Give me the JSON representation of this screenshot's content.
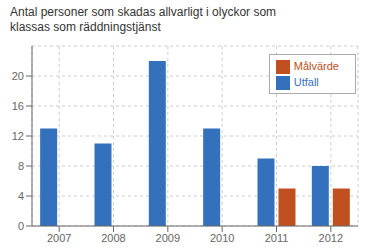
{
  "chart_data": {
    "type": "bar",
    "title": "Antal personer som skadas allvarligt i olyckor som\nklassas som räddningstjänst",
    "categories": [
      "2007",
      "2008",
      "2009",
      "2010",
      "2011",
      "2012"
    ],
    "series": [
      {
        "name": "Utfall",
        "color": "#3471BC",
        "values": [
          13,
          11,
          22,
          13,
          9,
          8
        ]
      },
      {
        "name": "Målvärde",
        "color": "#C05020",
        "values": [
          null,
          null,
          null,
          null,
          5,
          5
        ]
      }
    ],
    "ylim": [
      0,
      24
    ],
    "yticks": [
      0,
      4,
      8,
      12,
      16,
      20
    ],
    "grid": true,
    "legend": "upper right"
  }
}
